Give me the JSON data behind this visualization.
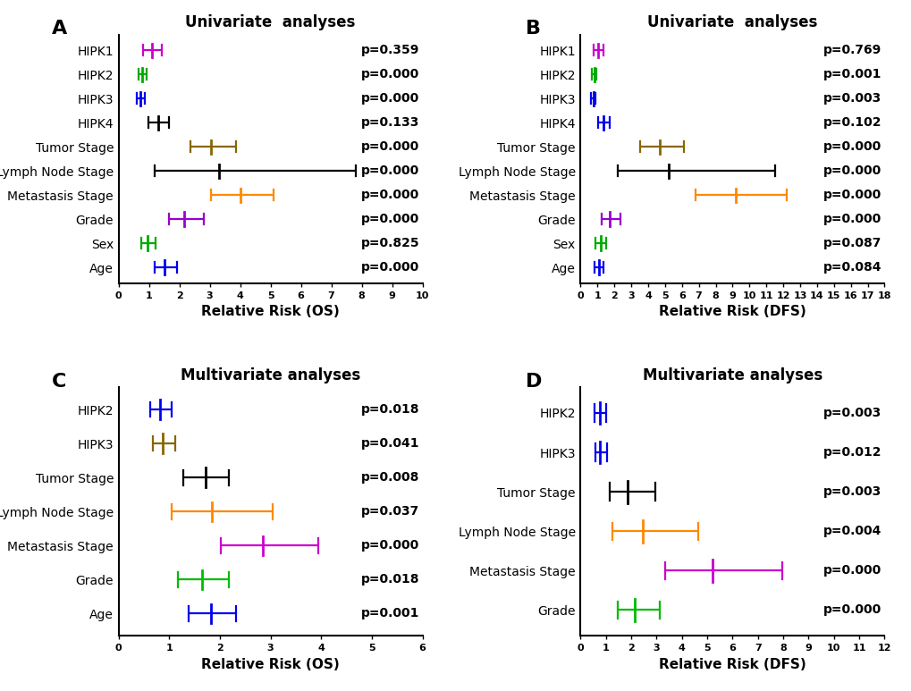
{
  "panels": [
    {
      "label": "A",
      "title": "Univariate  analyses",
      "xlabel": "Relative Risk (OS)",
      "xlim": [
        0,
        10
      ],
      "xticks": [
        0,
        1,
        2,
        3,
        4,
        5,
        6,
        7,
        8,
        9,
        10
      ],
      "rows": [
        {
          "name": "HIPK1",
          "mean": 1.1,
          "lo": 0.82,
          "hi": 1.42,
          "color": "#CC00CC",
          "pval": "p=0.359"
        },
        {
          "name": "HIPK2",
          "mean": 0.78,
          "lo": 0.65,
          "hi": 0.92,
          "color": "#00AA00",
          "pval": "p=0.000"
        },
        {
          "name": "HIPK3",
          "mean": 0.72,
          "lo": 0.6,
          "hi": 0.86,
          "color": "#0000EE",
          "pval": "p=0.000"
        },
        {
          "name": "HIPK4",
          "mean": 1.3,
          "lo": 0.98,
          "hi": 1.65,
          "color": "#000000",
          "pval": "p=0.133"
        },
        {
          "name": "Tumor Stage",
          "mean": 3.05,
          "lo": 2.35,
          "hi": 3.85,
          "color": "#886600",
          "pval": "p=0.000"
        },
        {
          "name": "Lymph Node Stage",
          "mean": 3.3,
          "lo": 1.2,
          "hi": 7.8,
          "color": "#000000",
          "pval": "p=0.000"
        },
        {
          "name": "Metastasis Stage",
          "mean": 4.0,
          "lo": 3.05,
          "hi": 5.1,
          "color": "#FF8800",
          "pval": "p=0.000"
        },
        {
          "name": "Grade",
          "mean": 2.15,
          "lo": 1.65,
          "hi": 2.8,
          "color": "#9900CC",
          "pval": "p=0.000"
        },
        {
          "name": "Sex",
          "mean": 0.96,
          "lo": 0.74,
          "hi": 1.22,
          "color": "#00AA00",
          "pval": "p=0.825"
        },
        {
          "name": "Age",
          "mean": 1.52,
          "lo": 1.18,
          "hi": 1.92,
          "color": "#0000EE",
          "pval": "p=0.000"
        }
      ]
    },
    {
      "label": "B",
      "title": "Univariate  analyses",
      "xlabel": "Relative Risk (DFS)",
      "xlim": [
        0,
        18
      ],
      "xticks": [
        0,
        1,
        2,
        3,
        4,
        5,
        6,
        7,
        8,
        9,
        10,
        11,
        12,
        13,
        14,
        15,
        16,
        17,
        18
      ],
      "rows": [
        {
          "name": "HIPK1",
          "mean": 1.05,
          "lo": 0.78,
          "hi": 1.38,
          "color": "#CC00CC",
          "pval": "p=0.769"
        },
        {
          "name": "HIPK2",
          "mean": 0.8,
          "lo": 0.68,
          "hi": 0.94,
          "color": "#00AA00",
          "pval": "p=0.001"
        },
        {
          "name": "HIPK3",
          "mean": 0.75,
          "lo": 0.62,
          "hi": 0.9,
          "color": "#0000EE",
          "pval": "p=0.003"
        },
        {
          "name": "HIPK4",
          "mean": 1.35,
          "lo": 1.02,
          "hi": 1.72,
          "color": "#0000EE",
          "pval": "p=0.102"
        },
        {
          "name": "Tumor Stage",
          "mean": 4.7,
          "lo": 3.5,
          "hi": 6.1,
          "color": "#886600",
          "pval": "p=0.000"
        },
        {
          "name": "Lymph Node Stage",
          "mean": 5.2,
          "lo": 2.2,
          "hi": 11.5,
          "color": "#000000",
          "pval": "p=0.000"
        },
        {
          "name": "Metastasis Stage",
          "mean": 9.2,
          "lo": 6.8,
          "hi": 12.2,
          "color": "#FF8800",
          "pval": "p=0.000"
        },
        {
          "name": "Grade",
          "mean": 1.75,
          "lo": 1.25,
          "hi": 2.35,
          "color": "#9900CC",
          "pval": "p=0.000"
        },
        {
          "name": "Sex",
          "mean": 1.18,
          "lo": 0.88,
          "hi": 1.52,
          "color": "#00AA00",
          "pval": "p=0.087"
        },
        {
          "name": "Age",
          "mean": 1.08,
          "lo": 0.82,
          "hi": 1.38,
          "color": "#0000EE",
          "pval": "p=0.084"
        }
      ]
    },
    {
      "label": "C",
      "title": "Multivariate analyses",
      "xlabel": "Relative Risk (OS)",
      "xlim": [
        0,
        6
      ],
      "xticks": [
        0,
        1,
        2,
        3,
        4,
        5,
        6
      ],
      "rows": [
        {
          "name": "HIPK2",
          "mean": 0.82,
          "lo": 0.62,
          "hi": 1.05,
          "color": "#0000EE",
          "pval": "p=0.018"
        },
        {
          "name": "HIPK3",
          "mean": 0.88,
          "lo": 0.68,
          "hi": 1.12,
          "color": "#886600",
          "pval": "p=0.041"
        },
        {
          "name": "Tumor Stage",
          "mean": 1.72,
          "lo": 1.28,
          "hi": 2.18,
          "color": "#000000",
          "pval": "p=0.008"
        },
        {
          "name": "Lymph Node Stage",
          "mean": 1.85,
          "lo": 1.05,
          "hi": 3.05,
          "color": "#FF8800",
          "pval": "p=0.037"
        },
        {
          "name": "Metastasis Stage",
          "mean": 2.85,
          "lo": 2.02,
          "hi": 3.95,
          "color": "#CC00CC",
          "pval": "p=0.000"
        },
        {
          "name": "Grade",
          "mean": 1.65,
          "lo": 1.18,
          "hi": 2.18,
          "color": "#00BB00",
          "pval": "p=0.018"
        },
        {
          "name": "Age",
          "mean": 1.82,
          "lo": 1.38,
          "hi": 2.32,
          "color": "#0000EE",
          "pval": "p=0.001"
        }
      ]
    },
    {
      "label": "D",
      "title": "Multivariate analyses",
      "xlabel": "Relative Risk (DFS)",
      "xlim": [
        0,
        12
      ],
      "xticks": [
        0,
        1,
        2,
        3,
        4,
        5,
        6,
        7,
        8,
        9,
        10,
        11,
        12
      ],
      "rows": [
        {
          "name": "HIPK2",
          "mean": 0.75,
          "lo": 0.55,
          "hi": 1.02,
          "color": "#0000EE",
          "pval": "p=0.003"
        },
        {
          "name": "HIPK3",
          "mean": 0.78,
          "lo": 0.58,
          "hi": 1.05,
          "color": "#0000EE",
          "pval": "p=0.012"
        },
        {
          "name": "Tumor Stage",
          "mean": 1.85,
          "lo": 1.15,
          "hi": 2.95,
          "color": "#000000",
          "pval": "p=0.003"
        },
        {
          "name": "Lymph Node Stage",
          "mean": 2.45,
          "lo": 1.25,
          "hi": 4.65,
          "color": "#FF8800",
          "pval": "p=0.004"
        },
        {
          "name": "Metastasis Stage",
          "mean": 5.2,
          "lo": 3.35,
          "hi": 7.95,
          "color": "#CC00CC",
          "pval": "p=0.000"
        },
        {
          "name": "Grade",
          "mean": 2.15,
          "lo": 1.48,
          "hi": 3.12,
          "color": "#00BB00",
          "pval": "p=0.000"
        }
      ]
    }
  ],
  "background_color": "#ffffff",
  "spine_color": "#000000",
  "tick_color": "#000000",
  "label_fontsize": 11,
  "title_fontsize": 12,
  "pval_fontsize": 10,
  "row_fontsize": 10,
  "panel_label_fontsize": 16
}
